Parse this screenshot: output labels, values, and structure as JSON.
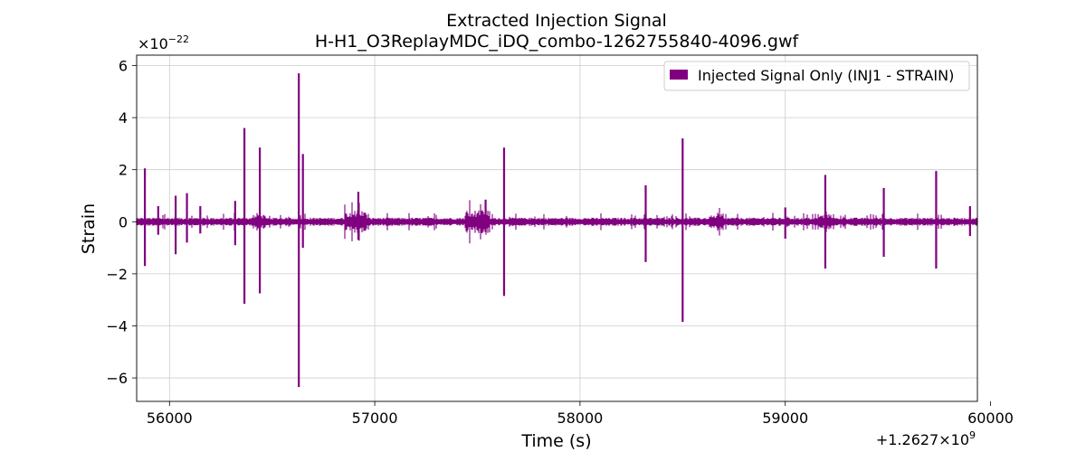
{
  "chart_data": {
    "type": "line",
    "title": "Extracted Injection Signal",
    "subtitle": "H-H1_O3ReplayMDC_iDQ_combo-1262755840-4096.gwf",
    "xlabel": "Time (s)",
    "ylabel": "Strain",
    "x_offset_label": "+1.2627×10",
    "x_offset_exponent": "9",
    "y_scale_label": "×10",
    "y_scale_exponent": "−22",
    "x_offset": 1262700000,
    "y_scale": 1e-22,
    "xlim": [
      1262755840,
      1262759936
    ],
    "ylim": [
      -6.9e-22,
      6.4e-22
    ],
    "xticks": [
      1262756000,
      1262757000,
      1262758000,
      1262759000,
      1262760000
    ],
    "xtick_labels": [
      "56000",
      "57000",
      "58000",
      "59000",
      "60000"
    ],
    "yticks": [
      -6e-22,
      -4e-22,
      -2e-22,
      0,
      2e-22,
      4e-22,
      6e-22
    ],
    "ytick_labels": [
      "−6",
      "−4",
      "−2",
      "0",
      "2",
      "4",
      "6"
    ],
    "grid": true,
    "legend_position": "top-right",
    "series": [
      {
        "name": "Injected Signal Only (INJ1 - STRAIN)",
        "color": "#800080",
        "baseline_amplitude": 1.2e-23,
        "x_start": 1262755840,
        "x_end": 1262759936,
        "spikes": [
          {
            "x": 1262755880,
            "ymax": 2.05e-22,
            "ymin": -1.7e-22
          },
          {
            "x": 1262755945,
            "ymax": 6e-23,
            "ymin": -5e-23
          },
          {
            "x": 1262756030,
            "ymax": 1e-22,
            "ymin": -1.25e-22
          },
          {
            "x": 1262756085,
            "ymax": 1.1e-22,
            "ymin": -8e-23
          },
          {
            "x": 1262756150,
            "ymax": 6e-23,
            "ymin": -4.5e-23
          },
          {
            "x": 1262756320,
            "ymax": 8e-23,
            "ymin": -9e-23
          },
          {
            "x": 1262756365,
            "ymax": 3.6e-22,
            "ymin": -3.15e-22
          },
          {
            "x": 1262756440,
            "ymax": 2.85e-22,
            "ymin": -2.75e-22
          },
          {
            "x": 1262756630,
            "ymax": 5.7e-22,
            "ymin": -6.35e-22
          },
          {
            "x": 1262756650,
            "ymax": 2.6e-22,
            "ymin": -1e-22
          },
          {
            "x": 1262756920,
            "ymax": 1.15e-22,
            "ymin": -7e-23
          },
          {
            "x": 1262757540,
            "ymax": 8.5e-23,
            "ymin": -4e-23
          },
          {
            "x": 1262757630,
            "ymax": 2.85e-22,
            "ymin": -2.85e-22
          },
          {
            "x": 1262758320,
            "ymax": 1.4e-22,
            "ymin": -1.55e-22
          },
          {
            "x": 1262758500,
            "ymax": 3.2e-22,
            "ymin": -3.85e-22
          },
          {
            "x": 1262759000,
            "ymax": 5.5e-23,
            "ymin": -6.5e-23
          },
          {
            "x": 1262759195,
            "ymax": 1.8e-22,
            "ymin": -1.8e-22
          },
          {
            "x": 1262759480,
            "ymax": 1.3e-22,
            "ymin": -1.35e-22
          },
          {
            "x": 1262759735,
            "ymax": 1.95e-22,
            "ymin": -1.8e-22
          },
          {
            "x": 1262759900,
            "ymax": 6e-23,
            "ymin": -5.5e-23
          }
        ],
        "bursts": [
          {
            "x0": 1262756850,
            "x1": 1262756960,
            "amp": 4.5e-23
          },
          {
            "x0": 1262757440,
            "x1": 1262757560,
            "amp": 4.5e-23
          },
          {
            "x0": 1262758630,
            "x1": 1262758700,
            "amp": 3.5e-23
          },
          {
            "x0": 1262759160,
            "x1": 1262759230,
            "amp": 3e-23
          },
          {
            "x0": 1262756400,
            "x1": 1262756470,
            "amp": 3e-23
          }
        ]
      }
    ]
  }
}
